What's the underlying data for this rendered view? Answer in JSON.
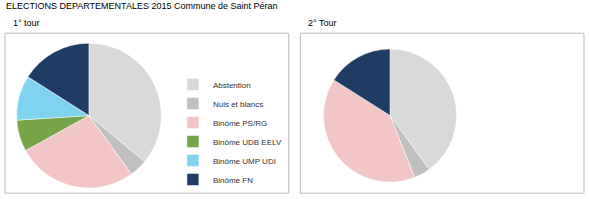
{
  "chart_data": [
    {
      "type": "pie",
      "title": "ELECTIONS DEPARTEMENTALES 2015 Commune de Saint Péran",
      "subtitle": "1° tour",
      "categories": [
        "Abstention",
        "Nuls et blancs",
        "Binôme PS/RG",
        "Binôme UDB EELV",
        "Binôme UMP UDI",
        "Binôme FN"
      ],
      "values": [
        36,
        4,
        27,
        7,
        10,
        16
      ],
      "colors": [
        "#d9d9d9",
        "#bfbfbf",
        "#f2c6c6",
        "#77a34a",
        "#80d3ee",
        "#1f3d64"
      ],
      "legend": "right"
    },
    {
      "type": "pie",
      "subtitle": "2° Tour",
      "categories": [
        "Abstention",
        "Nuls et blancs",
        "Binôme PS/RG",
        "Binôme FN"
      ],
      "values": [
        40,
        4,
        40,
        16
      ],
      "colors": [
        "#d9d9d9",
        "#bfbfbf",
        "#f2c6c6",
        "#1f3d64"
      ],
      "legend": "right"
    }
  ]
}
